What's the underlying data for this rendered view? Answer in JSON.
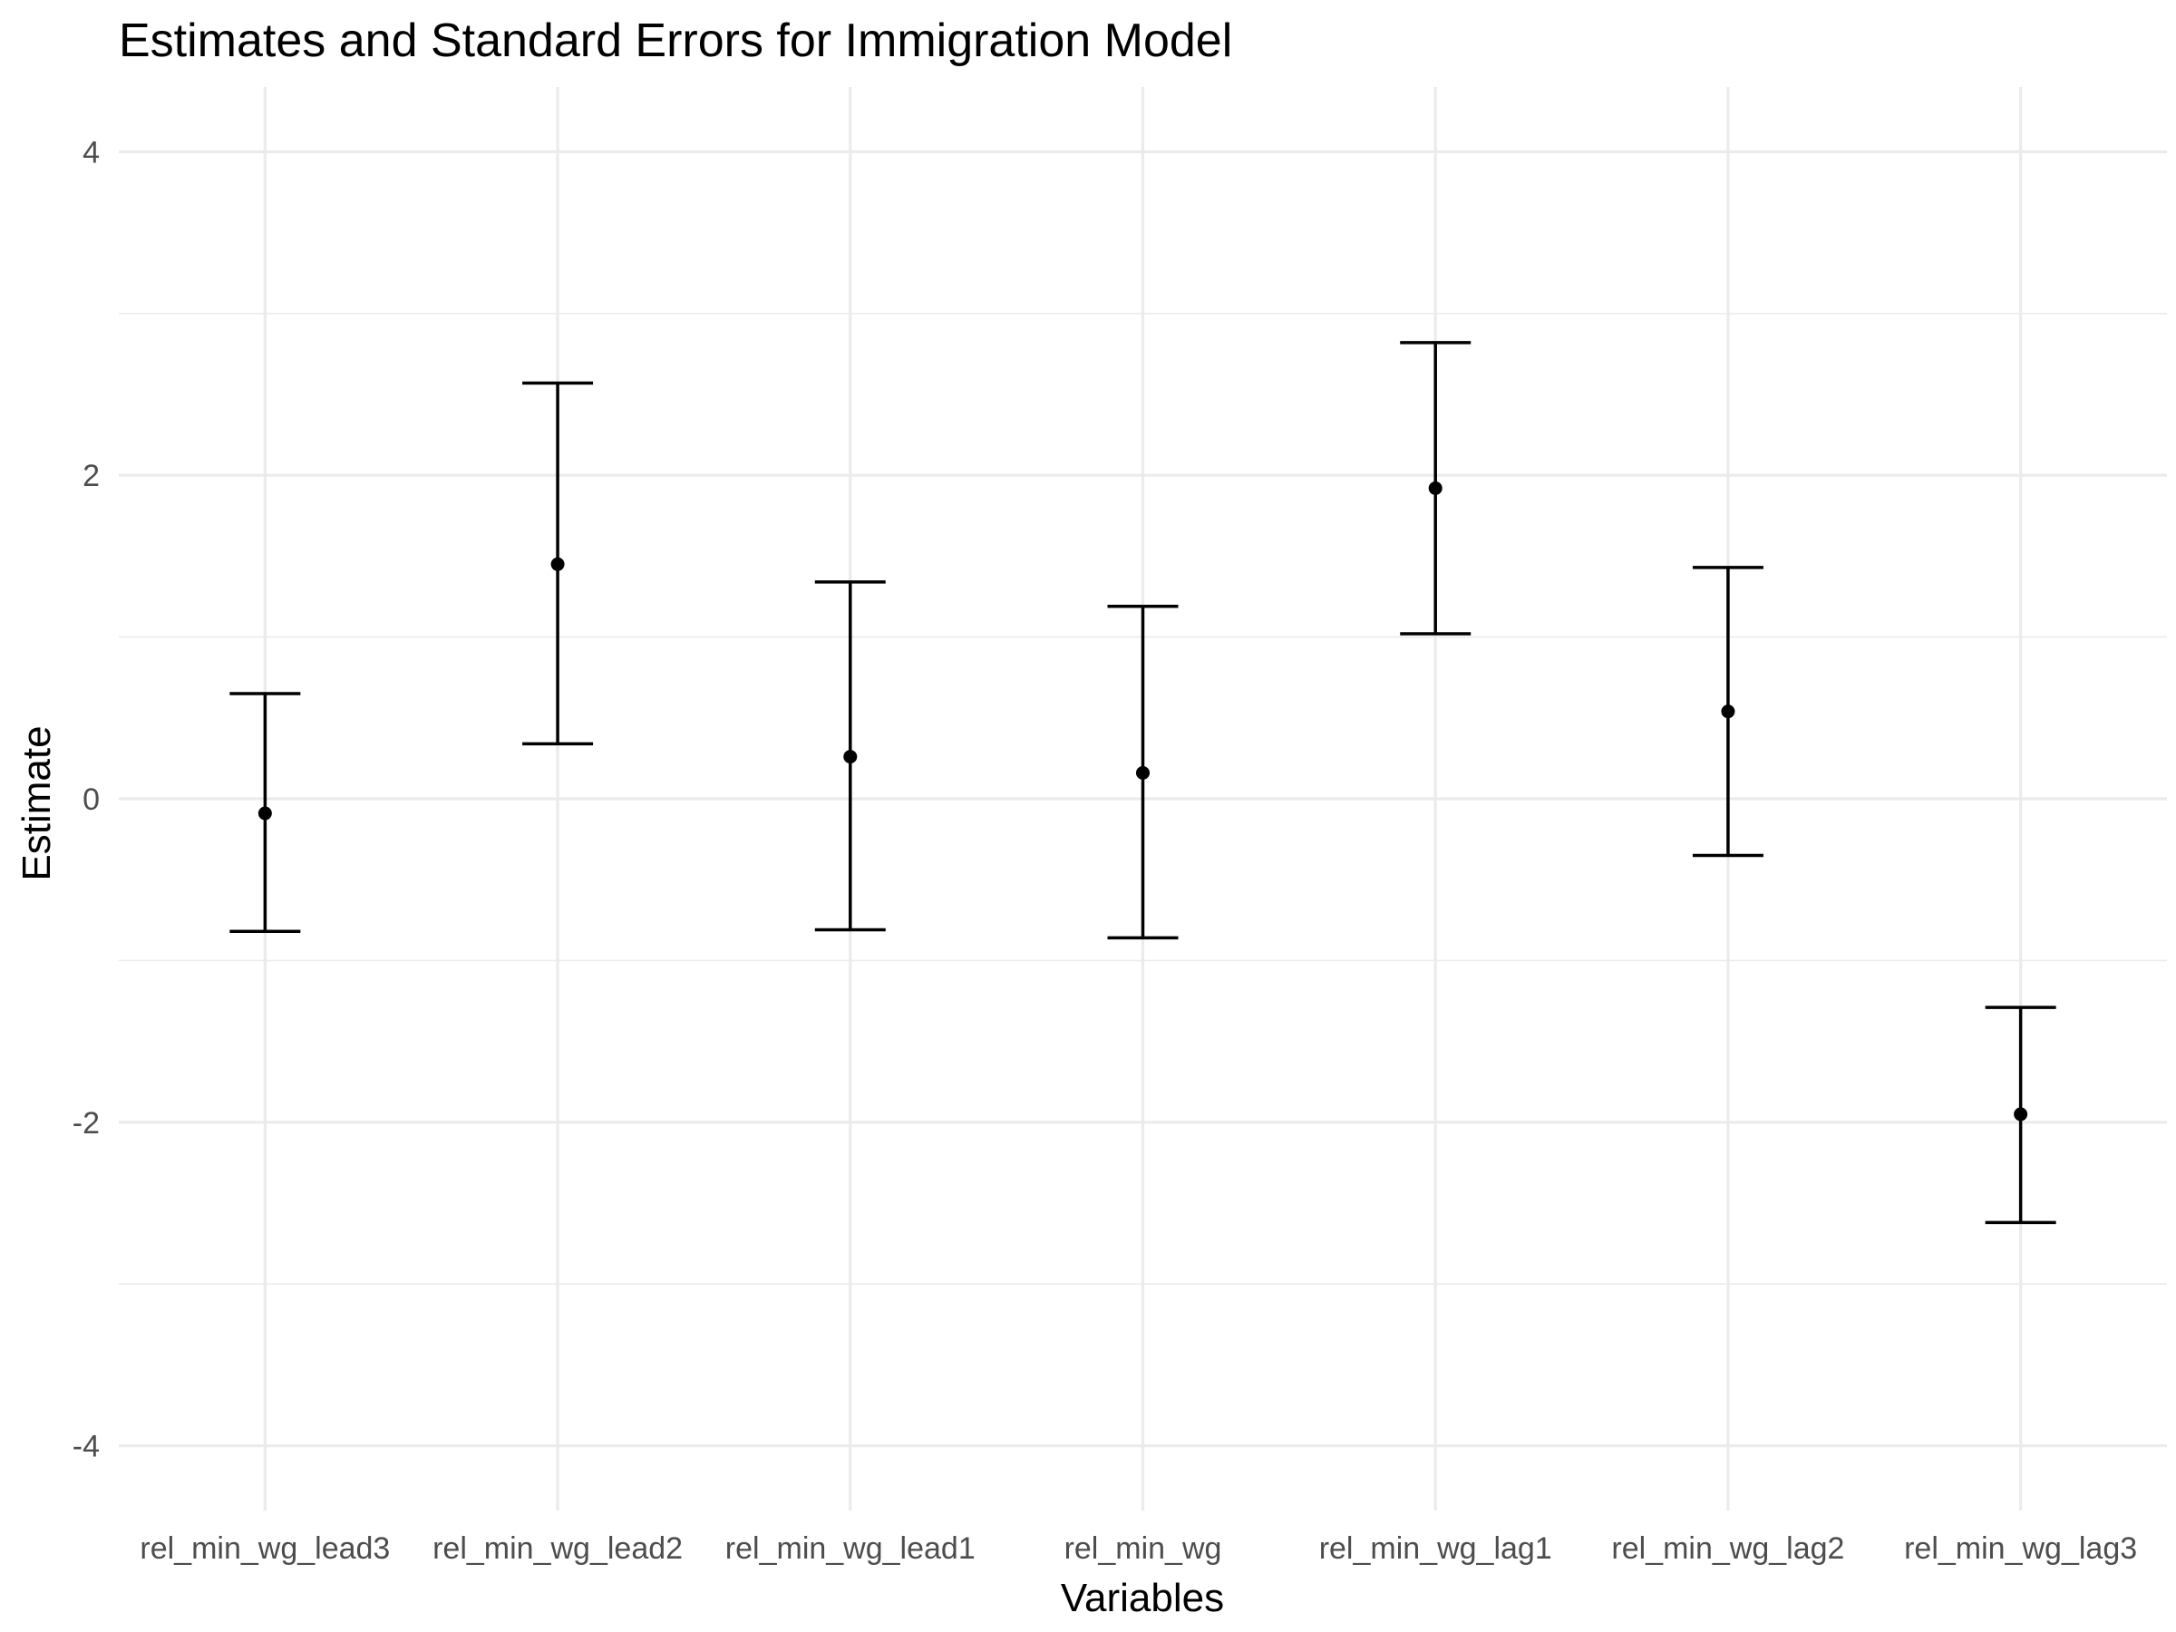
{
  "chart_data": {
    "type": "errorbar",
    "title": "Estimates and Standard Errors for Immigration Model",
    "xlabel": "Variables",
    "ylabel": "Estimate",
    "ylim": [
      -4.4,
      4.4
    ],
    "y_ticks": [
      -4,
      -2,
      0,
      2,
      4
    ],
    "y_tick_labels": [
      "-4",
      "-2",
      "0",
      "2",
      "4"
    ],
    "grid": true,
    "categories": [
      "rel_min_wg_lead3",
      "rel_min_wg_lead2",
      "rel_min_wg_lead1",
      "rel_min_wg",
      "rel_min_wg_lag1",
      "rel_min_wg_lag2",
      "rel_min_wg_lag3"
    ],
    "series": [
      {
        "estimate": [
          -0.09,
          1.45,
          0.26,
          0.16,
          1.92,
          0.54,
          -1.95
        ],
        "lower": [
          -0.82,
          0.34,
          -0.81,
          -0.86,
          1.02,
          -0.35,
          -2.62
        ],
        "upper": [
          0.65,
          2.57,
          1.34,
          1.19,
          2.82,
          1.43,
          -1.29
        ]
      }
    ],
    "colors": {
      "point": "#000000",
      "errorbar": "#000000",
      "grid": "#ebebeb",
      "background": "#ffffff"
    }
  }
}
